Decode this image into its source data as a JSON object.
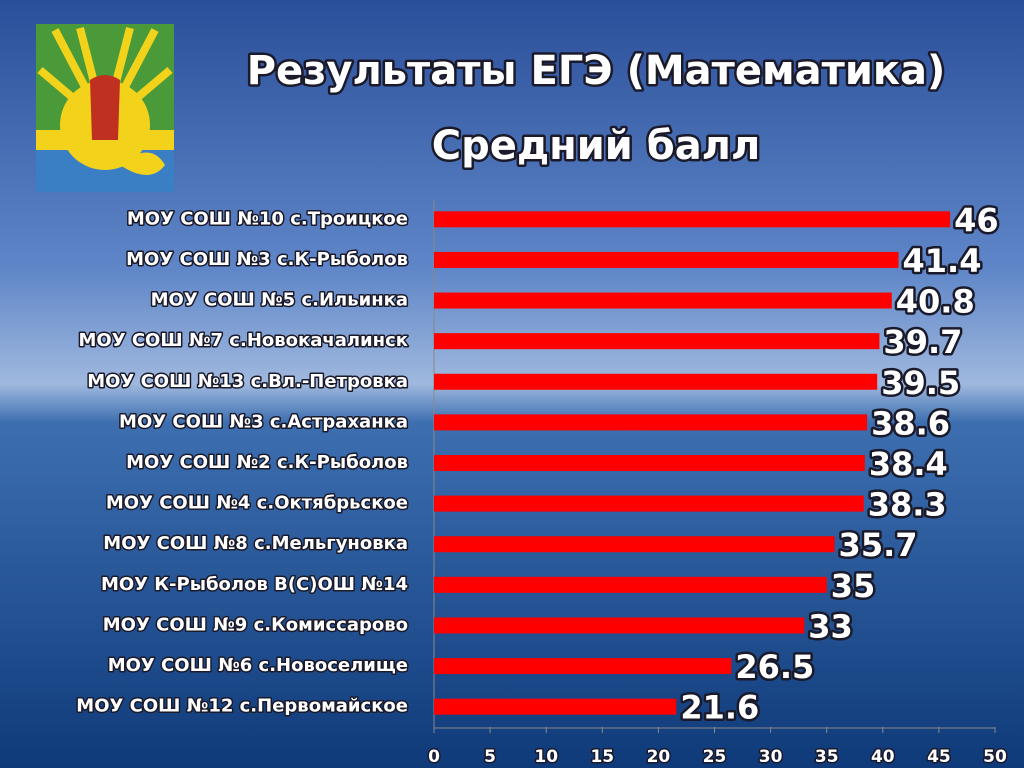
{
  "chart_data": {
    "type": "barh",
    "title": "Результаты ЕГЭ (Математика)",
    "subtitle": "Средний балл",
    "categories": [
      "МОУ СОШ №10 с.Троицкое",
      "МОУ СОШ №3 с.К-Рыболов",
      "МОУ СОШ №5 с.Ильинка",
      "МОУ СОШ №7 с.Новокачалинск",
      "МОУ СОШ №13 с.Вл.-Петровка",
      "МОУ СОШ №3 с.Астраханка",
      "МОУ СОШ №2 с.К-Рыболов",
      "МОУ СОШ №4 с.Октябрьское",
      "МОУ СОШ №8 с.Мельгуновка",
      "МОУ К-Рыболов В(С)ОШ №14",
      "МОУ СОШ №9 с.Комиссарово",
      "МОУ СОШ №6 с.Новоселище",
      "МОУ СОШ №12 с.Первомайское"
    ],
    "values": [
      46,
      41.4,
      40.8,
      39.7,
      39.5,
      38.6,
      38.4,
      38.3,
      35.7,
      35,
      33,
      26.5,
      21.6
    ],
    "color": "#ff0000",
    "xlim": [
      0,
      50
    ],
    "xticks": [
      0,
      5,
      10,
      15,
      20,
      25,
      30,
      35,
      40,
      45,
      50
    ]
  }
}
